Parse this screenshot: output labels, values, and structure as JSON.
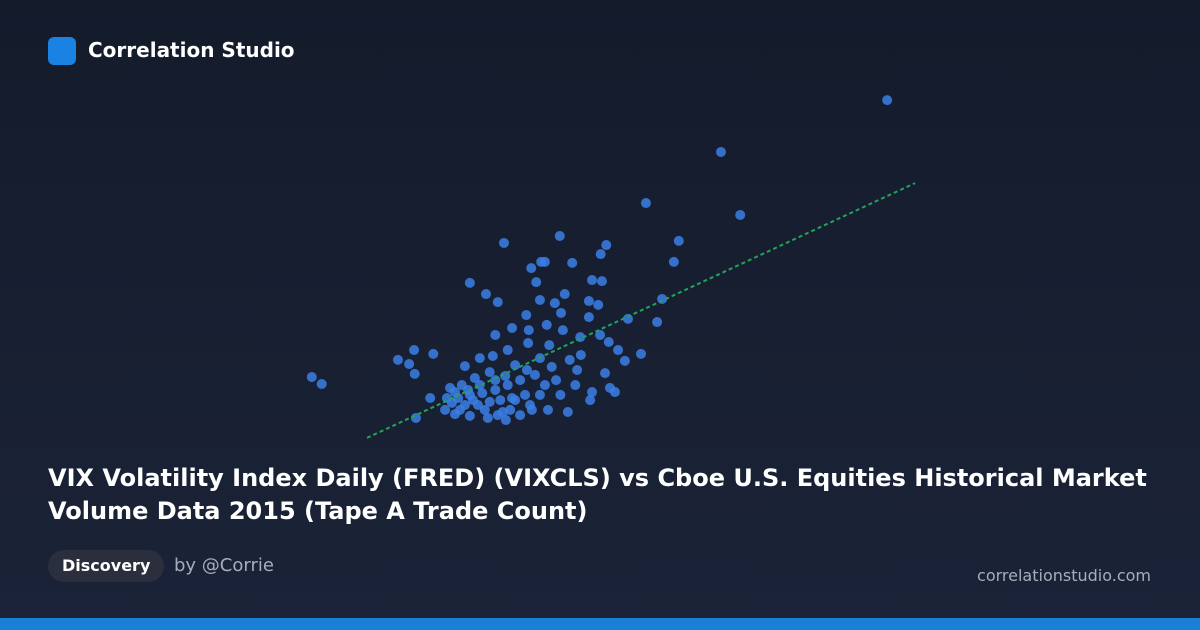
{
  "brand": "Correlation Studio",
  "title": "VIX Volatility Index Daily (FRED) (VIXCLS) vs Cboe U.S. Equities Historical Market Volume Data 2015 (Tape A Trade Count)",
  "tag": "Discovery",
  "author": "by @Corrie",
  "site": "correlationstudio.com",
  "chart_data": {
    "type": "scatter",
    "color": "#3b7fe6",
    "xlim": [
      0,
      100
    ],
    "ylim": [
      0,
      100
    ],
    "x": [
      94.7,
      67.9,
      71.0,
      55.8,
      61.1,
      60.3,
      58.4,
      57.6,
      52.9,
      55.0,
      1.9,
      3.5,
      32.9,
      41.9,
      49.4,
      48.5,
      27.4,
      30.0,
      31.9,
      15.8,
      18.4,
      17.6,
      18.5,
      21.5,
      18.7,
      21.0,
      37.3,
      38.9,
      39.5,
      43.9,
      38.1,
      38.7,
      41.1,
      42.7,
      47.1,
      48.7,
      46.6,
      48.1,
      46.6,
      42.1,
      36.5,
      34.2,
      31.5,
      36.9,
      39.8,
      42.4,
      45.2,
      48.4,
      49.8,
      51.3,
      52.4,
      45.3,
      43.5,
      40.2,
      36.8,
      33.5,
      31.1,
      29.0,
      26.6,
      49.2,
      50.0,
      47.1,
      44.4,
      42.0,
      43.2,
      40.0,
      37.1,
      35.5,
      32.7,
      30.3,
      27.4,
      25.0,
      23.4,
      25.5,
      27.4,
      29.4,
      31.5,
      33.5,
      35.5,
      37.9,
      39.5,
      26.1,
      28.2,
      30.6,
      34.7,
      38.7,
      25.0,
      26.6,
      28.7,
      30.6,
      32.3,
      34.2,
      36.3,
      24.5,
      27.1,
      29.8,
      31.9,
      33.9,
      25.8,
      27.9,
      23.7,
      24.2,
      46.8,
      50.8,
      41.3,
      36.6,
      33.1,
      40.6,
      44.7,
      38.7,
      37.4,
      33.2,
      34.7,
      29.0,
      31.5
    ],
    "y": [
      97.1,
      82.3,
      64.3,
      67.7,
      56.9,
      50.9,
      40.3,
      33.7,
      34.6,
      24.6,
      18.0,
      16.0,
      56.3,
      58.3,
      55.7,
      53.1,
      44.9,
      41.7,
      39.4,
      22.9,
      25.7,
      21.7,
      18.9,
      24.6,
      6.3,
      12.0,
      49.1,
      50.9,
      50.9,
      50.6,
      45.1,
      40.0,
      39.1,
      41.7,
      45.7,
      45.4,
      39.7,
      38.6,
      35.1,
      36.3,
      35.7,
      32.0,
      30.0,
      31.4,
      32.9,
      31.4,
      29.4,
      30.0,
      28.0,
      25.7,
      22.6,
      24.3,
      22.9,
      27.1,
      27.7,
      25.7,
      24.0,
      23.4,
      21.1,
      19.1,
      14.9,
      13.7,
      15.7,
      12.9,
      8.0,
      8.6,
      10.0,
      7.1,
      8.0,
      6.3,
      6.9,
      7.4,
      8.6,
      12.0,
      12.9,
      13.4,
      14.3,
      15.7,
      17.1,
      18.6,
      15.7,
      15.7,
      17.7,
      19.4,
      21.4,
      23.4,
      13.7,
      10.0,
      10.0,
      10.9,
      11.4,
      12.0,
      12.9,
      10.6,
      14.3,
      8.6,
      7.1,
      8.6,
      8.6,
      11.4,
      12.0,
      14.9,
      11.4,
      13.7,
      17.1,
      20.0,
      18.3,
      20.9,
      20.0,
      12.9,
      8.6,
      5.7,
      11.4,
      15.7,
      17.1
    ],
    "trendline": {
      "x": [
        10.8,
        99.2
      ],
      "y": [
        0.6,
        73.4
      ],
      "color": "#22a35a"
    }
  }
}
